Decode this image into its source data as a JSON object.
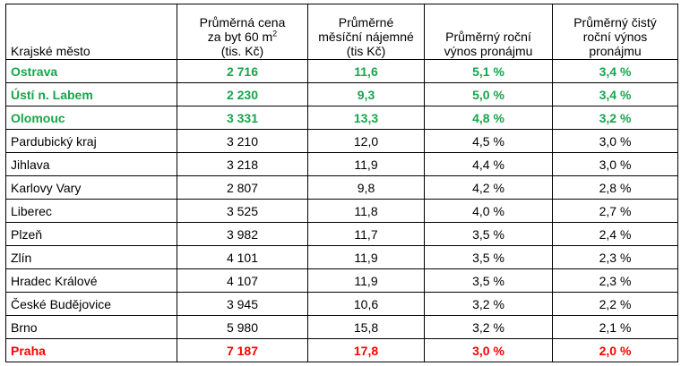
{
  "headers": {
    "city": "Krajské město",
    "price_l1": "Průměrná cena",
    "price_l2": "za byt 60 m",
    "price_sup": "2",
    "price_l3": "(tis. Kč)",
    "rent_l1": "Průměrné",
    "rent_l2": "měsíční nájemné",
    "rent_l3": "(tis Kč)",
    "yield_l1": "Průměrný roční",
    "yield_l2": "výnos pronájmu",
    "net_l1": "Průměrný čistý",
    "net_l2": "roční výnos",
    "net_l3": "pronájmu"
  },
  "rows": [
    {
      "city": "Ostrava",
      "price": "2 716",
      "rent": "11,6",
      "yield": "5,1 %",
      "net": "3,4 %"
    },
    {
      "city": "Ústí n. Labem",
      "price": "2 230",
      "rent": "9,3",
      "yield": "5,0 %",
      "net": "3,4 %"
    },
    {
      "city": "Olomouc",
      "price": "3 331",
      "rent": "13,3",
      "yield": "4,8 %",
      "net": "3,2 %"
    },
    {
      "city": "Pardubický kraj",
      "price": "3 210",
      "rent": "12,0",
      "yield": "4,5 %",
      "net": "3,0 %"
    },
    {
      "city": "Jihlava",
      "price": "3 218",
      "rent": "11,9",
      "yield": "4,4 %",
      "net": "3,0 %"
    },
    {
      "city": "Karlovy Vary",
      "price": "2 807",
      "rent": "9,8",
      "yield": "4,2 %",
      "net": "2,8 %"
    },
    {
      "city": "Liberec",
      "price": "3 525",
      "rent": "11,8",
      "yield": "4,0 %",
      "net": "2,7 %"
    },
    {
      "city": "Plzeň",
      "price": "3 982",
      "rent": "11,7",
      "yield": "3,5 %",
      "net": "2,4 %"
    },
    {
      "city": "Zlín",
      "price": "4 101",
      "rent": "11,9",
      "yield": "3,5 %",
      "net": "2,3 %"
    },
    {
      "city": "Hradec Králové",
      "price": "4 107",
      "rent": "11,9",
      "yield": "3,5 %",
      "net": "2,3 %"
    },
    {
      "city": "České Budějovice",
      "price": "3 945",
      "rent": "10,6",
      "yield": "3,2 %",
      "net": "2,2 %"
    },
    {
      "city": "Brno",
      "price": "5 980",
      "rent": "15,8",
      "yield": "3,2 %",
      "net": "2,1 %"
    },
    {
      "city": "Praha",
      "price": "7 187",
      "rent": "17,8",
      "yield": "3,0 %",
      "net": "2,0 %"
    }
  ],
  "colors": {
    "highlight_green": "#17a54c",
    "highlight_red": "#ff0000"
  }
}
